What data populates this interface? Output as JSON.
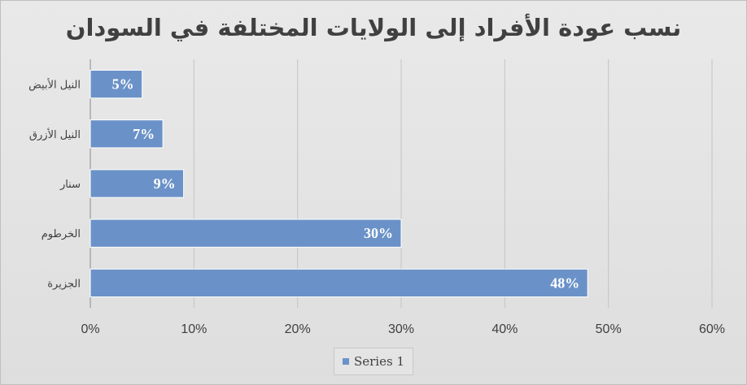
{
  "chart_data": {
    "type": "bar",
    "orientation": "horizontal",
    "title": "نسب عودة الأفراد إلى الولايات المختلفة في السودان",
    "categories": [
      "النيل الأبيض",
      "النيل الأزرق",
      "سنار",
      "الخرطوم",
      "الجزيرة"
    ],
    "series": [
      {
        "name": "Series 1",
        "values": [
          5,
          7,
          9,
          30,
          48
        ],
        "data_labels": [
          "5%",
          "7%",
          "9%",
          "30%",
          "48%"
        ],
        "color": "#6b92c8"
      }
    ],
    "xlim": [
      0,
      60
    ],
    "x_ticks": [
      0,
      10,
      20,
      30,
      40,
      50,
      60
    ],
    "x_tick_labels": [
      "0%",
      "10%",
      "20%",
      "30%",
      "40%",
      "50%",
      "60%"
    ],
    "grid": true,
    "legend": {
      "position": "bottom",
      "entries": [
        "Series 1"
      ]
    }
  }
}
